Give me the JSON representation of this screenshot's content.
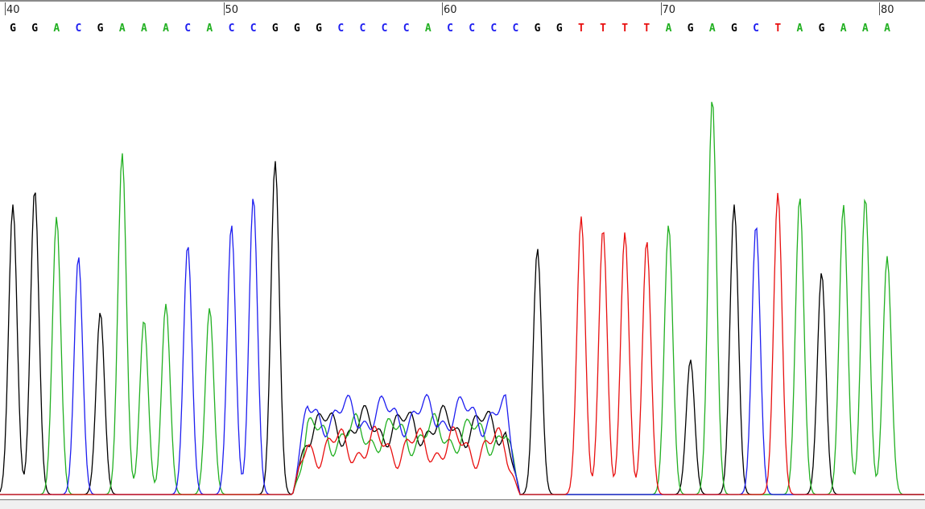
{
  "chart_data": {
    "type": "line",
    "title": "",
    "xlabel": "",
    "ylabel": "",
    "position_ticks": [
      40,
      50,
      60,
      70,
      80
    ],
    "colors": {
      "A": "#22b022",
      "C": "#1e1ef0",
      "G": "#000000",
      "T": "#e81010"
    },
    "base_calls": [
      {
        "pos": 40,
        "base": "G"
      },
      {
        "pos": 41,
        "base": "G"
      },
      {
        "pos": 42,
        "base": "A"
      },
      {
        "pos": 43,
        "base": "C"
      },
      {
        "pos": 44,
        "base": "G"
      },
      {
        "pos": 45,
        "base": "A"
      },
      {
        "pos": 46,
        "base": "A"
      },
      {
        "pos": 47,
        "base": "A"
      },
      {
        "pos": 48,
        "base": "C"
      },
      {
        "pos": 49,
        "base": "A"
      },
      {
        "pos": 50,
        "base": "C"
      },
      {
        "pos": 51,
        "base": "C"
      },
      {
        "pos": 52,
        "base": "G"
      },
      {
        "pos": 53,
        "base": "G"
      },
      {
        "pos": 54,
        "base": "G"
      },
      {
        "pos": 55,
        "base": "C"
      },
      {
        "pos": 56,
        "base": "C"
      },
      {
        "pos": 57,
        "base": "C"
      },
      {
        "pos": 58,
        "base": "C"
      },
      {
        "pos": 59,
        "base": "A"
      },
      {
        "pos": 60,
        "base": "C"
      },
      {
        "pos": 61,
        "base": "C"
      },
      {
        "pos": 62,
        "base": "C"
      },
      {
        "pos": 63,
        "base": "C"
      },
      {
        "pos": 64,
        "base": "G"
      },
      {
        "pos": 65,
        "base": "G"
      },
      {
        "pos": 66,
        "base": "T"
      },
      {
        "pos": 67,
        "base": "T"
      },
      {
        "pos": 68,
        "base": "T"
      },
      {
        "pos": 69,
        "base": "T"
      },
      {
        "pos": 70,
        "base": "A"
      },
      {
        "pos": 71,
        "base": "G"
      },
      {
        "pos": 72,
        "base": "A"
      },
      {
        "pos": 73,
        "base": "G"
      },
      {
        "pos": 74,
        "base": "C"
      },
      {
        "pos": 75,
        "base": "T"
      },
      {
        "pos": 76,
        "base": "A"
      },
      {
        "pos": 77,
        "base": "G"
      },
      {
        "pos": 78,
        "base": "A"
      },
      {
        "pos": 79,
        "base": "A"
      },
      {
        "pos": 80,
        "base": "A"
      }
    ],
    "series": [
      {
        "channel": "G",
        "peaks": [
          [
            40,
            0.73
          ],
          [
            41,
            0.77
          ],
          [
            44,
            0.46
          ],
          [
            52,
            0.84
          ],
          [
            64,
            0.62
          ],
          [
            71,
            0.34
          ],
          [
            73,
            0.73
          ],
          [
            77,
            0.56
          ]
        ]
      },
      {
        "channel": "A",
        "peaks": [
          [
            42,
            0.7
          ],
          [
            45,
            0.86
          ],
          [
            46,
            0.44
          ],
          [
            47,
            0.48
          ],
          [
            49,
            0.47
          ],
          [
            70,
            0.68
          ],
          [
            72,
            1.0
          ],
          [
            76,
            0.75
          ],
          [
            78,
            0.73
          ],
          [
            79,
            0.75
          ],
          [
            80,
            0.6
          ]
        ]
      },
      {
        "channel": "C",
        "peaks": [
          [
            43,
            0.6
          ],
          [
            48,
            0.63
          ],
          [
            50,
            0.68
          ],
          [
            51,
            0.75
          ],
          [
            74,
            0.68
          ]
        ]
      },
      {
        "channel": "T",
        "peaks": [
          [
            66,
            0.7
          ],
          [
            67,
            0.67
          ],
          [
            68,
            0.66
          ],
          [
            69,
            0.64
          ],
          [
            75,
            0.76
          ]
        ]
      }
    ]
  }
}
